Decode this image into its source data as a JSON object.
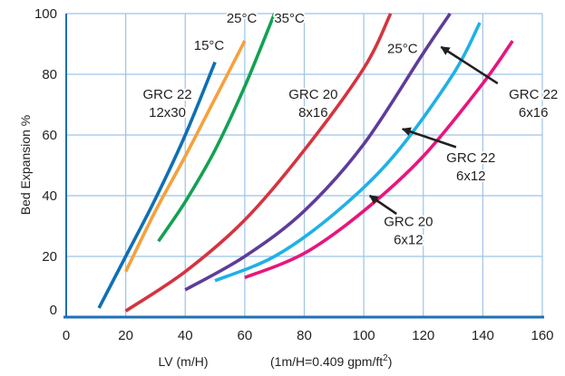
{
  "chart_data": {
    "type": "line",
    "title": "",
    "xlabel": "LV (m/H)",
    "xlabel_note": "(1m/H=0.409 gpm/ft",
    "xlabel_note_sup": "2",
    "xlabel_note_end": ")",
    "ylabel": "Bed Expansion %",
    "xlim": [
      0,
      160
    ],
    "ylim": [
      0,
      100
    ],
    "x_ticks": [
      "0",
      "20",
      "40",
      "60",
      "80",
      "100",
      "120",
      "140",
      "160"
    ],
    "y_ticks": [
      "0",
      "20",
      "40",
      "60",
      "80",
      "100"
    ],
    "grid": true,
    "series": [
      {
        "color": "#0f6fb4",
        "points": [
          [
            11,
            3
          ],
          [
            20,
            20
          ],
          [
            30,
            39
          ],
          [
            40,
            60
          ],
          [
            50,
            84
          ]
        ]
      },
      {
        "color": "#f7a03c",
        "points": [
          [
            20,
            15
          ],
          [
            30,
            35
          ],
          [
            40,
            53
          ],
          [
            50,
            72
          ],
          [
            60,
            91
          ]
        ]
      },
      {
        "color": "#13a153",
        "points": [
          [
            31,
            25
          ],
          [
            40,
            38
          ],
          [
            50,
            55
          ],
          [
            60,
            76
          ],
          [
            70,
            100
          ]
        ]
      },
      {
        "color": "#d6333f",
        "points": [
          [
            20,
            2
          ],
          [
            40,
            15
          ],
          [
            60,
            32
          ],
          [
            80,
            55
          ],
          [
            100,
            82
          ],
          [
            109,
            100
          ]
        ]
      },
      {
        "color": "#5e3c99",
        "points": [
          [
            40,
            9
          ],
          [
            60,
            20
          ],
          [
            80,
            35
          ],
          [
            100,
            57
          ],
          [
            120,
            87
          ],
          [
            129,
            100
          ]
        ]
      },
      {
        "color": "#1fb1e6",
        "points": [
          [
            50,
            12
          ],
          [
            70,
            20
          ],
          [
            90,
            34
          ],
          [
            110,
            53
          ],
          [
            130,
            80
          ],
          [
            139,
            97
          ]
        ]
      },
      {
        "color": "#e8157d",
        "points": [
          [
            60,
            13
          ],
          [
            80,
            21
          ],
          [
            100,
            35
          ],
          [
            120,
            53
          ],
          [
            140,
            77
          ],
          [
            150,
            91
          ]
        ]
      }
    ],
    "annotations": [
      {
        "lines": [
          "GRC 22",
          "12x30"
        ],
        "x": 34,
        "y": 72
      },
      {
        "lines": [
          "15°C"
        ],
        "x": 48,
        "y": 88
      },
      {
        "lines": [
          "25°C"
        ],
        "x": 59,
        "y": 97
      },
      {
        "lines": [
          "35°C"
        ],
        "x": 75,
        "y": 97
      },
      {
        "lines": [
          "GRC 20",
          "8x16"
        ],
        "x": 83,
        "y": 72
      },
      {
        "lines": [
          "25°C"
        ],
        "x": 113,
        "y": 87
      },
      {
        "lines": [
          "GRC 22",
          "6x16"
        ],
        "x": 157,
        "y": 72
      },
      {
        "lines": [
          "GRC 22",
          "6x12"
        ],
        "x": 136,
        "y": 51
      },
      {
        "lines": [
          "GRC 20",
          "6x12"
        ],
        "x": 115,
        "y": 30
      }
    ],
    "arrows": [
      {
        "from": [
          145,
          77
        ],
        "to": [
          126,
          89
        ]
      },
      {
        "from": [
          131,
          56
        ],
        "to": [
          113,
          62
        ]
      },
      {
        "from": [
          111,
          34
        ],
        "to": [
          102,
          40
        ]
      }
    ]
  }
}
